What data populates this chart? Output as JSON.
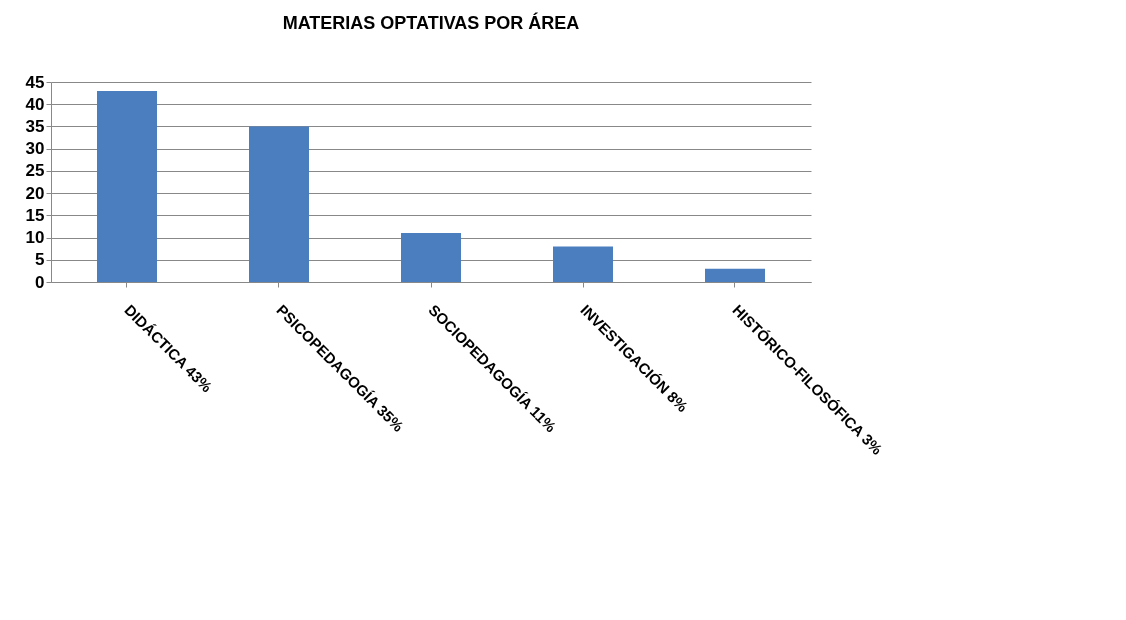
{
  "chart_data": {
    "type": "bar",
    "title": "MATERIAS OPTATIVAS POR ÁREA",
    "categories": [
      "DIDÁCTICA 43%",
      "PSICOPEDAGOGÍA 35%",
      "SOCIOPEDAGOGÍA 11%",
      "INVESTIGACIÓN 8%",
      "HISTÓRICO-FILOSÓFICA 3%"
    ],
    "values": [
      43,
      35,
      11,
      8,
      3
    ],
    "color": "#4a7ebf",
    "ylim": [
      0,
      45
    ],
    "yticks": [
      0,
      5,
      10,
      15,
      20,
      25,
      30,
      35,
      40,
      45
    ],
    "grid": "y"
  }
}
